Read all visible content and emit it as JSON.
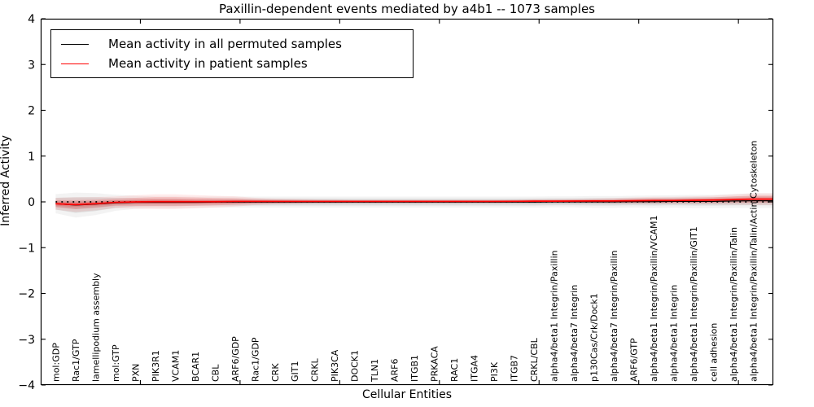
{
  "figure": {
    "title": "Paxillin-dependent events mediated by a4b1 -- 1073 samples",
    "xlabel": "Cellular Entities",
    "ylabel": "Inferred Activity"
  },
  "legend": {
    "entries": [
      {
        "label": "Mean activity in all permuted samples",
        "color": "#000000"
      },
      {
        "label": "Mean activity in patient samples",
        "color": "#ff0000"
      }
    ]
  },
  "chart_data": {
    "type": "line",
    "title": "Paxillin-dependent events mediated by a4b1 -- 1073 samples",
    "xlabel": "Cellular Entities",
    "ylabel": "Inferred Activity",
    "ylim": [
      -4,
      4
    ],
    "yticks": [
      4,
      3,
      2,
      1,
      0,
      -1,
      -2,
      -3,
      -4
    ],
    "ytick_labels": [
      "4",
      "3",
      "2",
      "1",
      "0",
      "−1",
      "−2",
      "−3",
      "−4"
    ],
    "x_major_tick_units": [
      5,
      10,
      15,
      20,
      25,
      30,
      35
    ],
    "x_axis_units_max": 36.75,
    "first_category_unit": 0.75,
    "grid": false,
    "legend_position": "upper left",
    "zero_line": {
      "y": 0,
      "style": "dotted",
      "color": "#000000"
    },
    "categories": [
      "mol:GDP",
      "Rac1/GTP",
      "lamellipodium assembly",
      "mol:GTP",
      "PXN",
      "PIK3R1",
      "VCAM1",
      "BCAR1",
      "CBL",
      "ARF6/GDP",
      "Rac1/GDP",
      "CRK",
      "GIT1",
      "CRKL",
      "PIK3CA",
      "DOCK1",
      "TLN1",
      "ARF6",
      "ITGB1",
      "PRKACA",
      "RAC1",
      "ITGA4",
      "PI3K",
      "ITGB7",
      "CRKL/CBL",
      "alpha4/beta1 Integrin/Paxillin",
      "alpha4/beta7 Integrin",
      "p130Cas/Crk/Dock1",
      "alpha4/beta7 Integrin/Paxillin",
      "ARF6/GTP",
      "alpha4/beta1 Integrin/Paxillin/VCAM1",
      "alpha4/beta1 Integrin",
      "alpha4/beta1 Integrin/Paxillin/GIT1",
      "cell adhesion",
      "alpha4/beta1 Integrin/Paxillin/Talin",
      "alpha4/beta1 Integrin/Paxillin/Talin/Actin Cytoskeleton"
    ],
    "series": [
      {
        "name": "Mean activity in all permuted samples",
        "color": "#000000",
        "band_color": "#666666",
        "mean": [
          -0.04,
          -0.07,
          -0.05,
          -0.02,
          -0.01,
          -0.01,
          -0.01,
          -0.01,
          -0.005,
          -0.005,
          -0.005,
          -0.005,
          -0.005,
          -0.005,
          -0.005,
          -0.005,
          -0.005,
          -0.005,
          -0.005,
          -0.005,
          -0.005,
          -0.005,
          -0.005,
          -0.005,
          -0.005,
          0,
          0,
          0,
          0,
          0.005,
          0.005,
          0.01,
          0.01,
          0.01,
          0.02,
          0.025
        ],
        "std": [
          0.13,
          0.17,
          0.15,
          0.11,
          0.09,
          0.08,
          0.08,
          0.075,
          0.075,
          0.075,
          0.075,
          0.075,
          0.075,
          0.075,
          0.075,
          0.075,
          0.075,
          0.075,
          0.075,
          0.075,
          0.075,
          0.075,
          0.075,
          0.075,
          0.075,
          0.075,
          0.075,
          0.08,
          0.08,
          0.08,
          0.085,
          0.085,
          0.09,
          0.09,
          0.095,
          0.1
        ]
      },
      {
        "name": "Mean activity in patient samples",
        "color": "#ff0000",
        "band_color": "#ff0000",
        "mean": [
          -0.04,
          -0.06,
          -0.04,
          -0.01,
          0,
          0.005,
          0.005,
          0.005,
          0.005,
          0.01,
          0.01,
          0.01,
          0.01,
          0.01,
          0.01,
          0.01,
          0.01,
          0.01,
          0.01,
          0.01,
          0.01,
          0.01,
          0.01,
          0.012,
          0.015,
          0.015,
          0.018,
          0.02,
          0.02,
          0.025,
          0.03,
          0.03,
          0.035,
          0.04,
          0.05,
          0.06
        ],
        "std": [
          0.08,
          0.1,
          0.09,
          0.08,
          0.09,
          0.1,
          0.1,
          0.09,
          0.08,
          0.07,
          0.05,
          0.04,
          0.035,
          0.03,
          0.028,
          0.025,
          0.025,
          0.025,
          0.025,
          0.025,
          0.025,
          0.025,
          0.025,
          0.025,
          0.03,
          0.03,
          0.032,
          0.035,
          0.04,
          0.045,
          0.05,
          0.05,
          0.055,
          0.06,
          0.07,
          0.08
        ]
      }
    ]
  }
}
